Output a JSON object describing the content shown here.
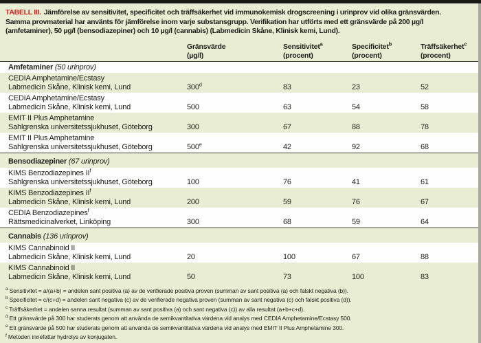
{
  "colors": {
    "page_background": "#e9edd3",
    "row_white": "#fefefe",
    "top_bar": "#1a1a15",
    "caption_accent_red": "#cf2020",
    "section_rule": "#3c3c32"
  },
  "title": {
    "label": "TABELL III.",
    "line1": "Jämförelse av sensitivitet, specificitet och träffsäkerhet vid immunokemisk drogscreening i urinprov vid olika gränsvärden.",
    "line2": "Samma provmaterial har använts för jämförelse inom varje substansgrupp. Verifikation har utförts med ett gränsvärde på 200 µg/l",
    "line3": "(amfetaminer), 50 µg/l (bensodiazepiner) och 10 µg/l (cannabis) (Labmedicin Skåne, Klinisk kemi, Lund)."
  },
  "columns": {
    "gransvarde": {
      "line1": "Gränsvärde",
      "sup": "",
      "line2": "(µg/l)"
    },
    "sensitivitet": {
      "line1": "Sensitivitet",
      "sup": "a",
      "line2": "(procent)"
    },
    "specificitet": {
      "line1": "Specificitet",
      "sup": "b",
      "line2": "(procent)"
    },
    "traffsakerhet": {
      "line1": "Träffsäkerhet",
      "sup": "c",
      "line2": "(procent)"
    }
  },
  "sections": [
    {
      "name": "Amfetaminer",
      "count": "(50 urinprov)",
      "rows": [
        {
          "method": "CEDIA Amphetamine/Ecstasy",
          "method_sup": "",
          "lab": "Labmedicin Skåne, Klinisk kemi, Lund",
          "cutoff": "300",
          "cutoff_sup": "d",
          "sens": "83",
          "spec": "23",
          "acc": "52"
        },
        {
          "method": "CEDIA Amphetamine/Ecstasy",
          "method_sup": "",
          "lab": "Labmedicin Skåne, Klinisk kemi, Lund",
          "cutoff": "500",
          "cutoff_sup": "",
          "sens": "63",
          "spec": "54",
          "acc": "58"
        },
        {
          "method": "EMIT II Plus Amphetamine",
          "method_sup": "",
          "lab": "Sahlgrenska universitetssjukhuset, Göteborg",
          "cutoff": "300",
          "cutoff_sup": "",
          "sens": "67",
          "spec": "88",
          "acc": "78"
        },
        {
          "method": "EMIT II Plus Amphetamine",
          "method_sup": "",
          "lab": "Sahlgrenska universitetssjukhuset, Göteborg",
          "cutoff": "500",
          "cutoff_sup": "e",
          "sens": "42",
          "spec": "92",
          "acc": "68"
        }
      ]
    },
    {
      "name": "Bensodiazepiner",
      "count": "(67 urinprov)",
      "rows": [
        {
          "method": "KIMS Benzodiazepines II",
          "method_sup": "f",
          "lab": "Sahlgrenska universitetssjukhuset, Göteborg",
          "cutoff": "100",
          "cutoff_sup": "",
          "sens": "76",
          "spec": "41",
          "acc": "61"
        },
        {
          "method": "KIMS Benzodiazepines II",
          "method_sup": "f",
          "lab": "Labmedicin Skåne, Klinisk kemi, Lund",
          "cutoff": "200",
          "cutoff_sup": "",
          "sens": "59",
          "spec": "76",
          "acc": "67"
        },
        {
          "method": "CEDIA Benzodiazepines",
          "method_sup": "f",
          "lab": "Rättsmedicinalverket, Linköping",
          "cutoff": "300",
          "cutoff_sup": "",
          "sens": "68",
          "spec": "59",
          "acc": "64"
        }
      ]
    },
    {
      "name": "Cannabis",
      "count": "(136 urinprov)",
      "rows": [
        {
          "method": "KIMS Cannabinoid II",
          "method_sup": "",
          "lab": "Labmedicin Skåne, Klinisk kemi, Lund",
          "cutoff": "20",
          "cutoff_sup": "",
          "sens": "100",
          "spec": "67",
          "acc": "88"
        },
        {
          "method": "KIMS Cannabinoid II",
          "method_sup": "",
          "lab": "Labmedicin Skåne, Klinisk kemi, Lund",
          "cutoff": "50",
          "cutoff_sup": "",
          "sens": "73",
          "spec": "100",
          "acc": "83"
        }
      ]
    }
  ],
  "footnotes": [
    {
      "sup": "a",
      "text": "Sensitivitet = a/(a+b) = andelen sant positiva (a) av de verifierade positiva proven (summan av sant positiva (a) och falskt negativa (b))."
    },
    {
      "sup": "b",
      "text": "Specificitet = c/(c+d) = andelen sant negativa (c) av de verifierade negativa proven (summan av sant negativa (c) och falskt positiva (d))."
    },
    {
      "sup": "c",
      "text": "Träffsäkerhet = andelen sanna resultat (summan av sant positiva (a) och sant negativa (c)) av alla resultat (a+b+c+d)."
    },
    {
      "sup": "d",
      "text": "Ett gränsvärde på 300 har studerats genom att använda de semikvantitativa värdena vid analys med CEDIA Amphetamine/Ecstasy 500."
    },
    {
      "sup": "e",
      "text": "Ett gränsvärde på 500 har studerats genom att använda de semikvantitativa värdena vid analys med EMIT II Plus Amphetamine 300."
    },
    {
      "sup": "f",
      "text": "Metoden innefattar hydrolys av konjugaten."
    }
  ]
}
